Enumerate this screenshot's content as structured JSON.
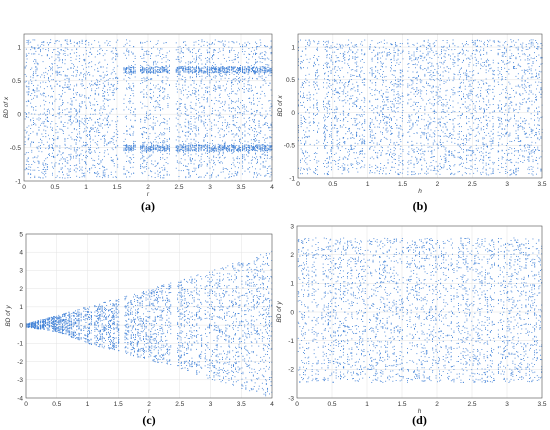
{
  "figure": {
    "point_color": "#3d7fd6"
  },
  "chart_data": [
    {
      "type": "scatter",
      "caption": "(a)",
      "xlabel": "r",
      "ylabel": "BD of x",
      "xlim": [
        0,
        4
      ],
      "ylim": [
        -1,
        1.2
      ],
      "xticks": [
        "0",
        "0.5",
        "1",
        "1.5",
        "2",
        "2.5",
        "3",
        "3.5",
        "4"
      ],
      "xtick_values": [
        0,
        0.5,
        1,
        1.5,
        2,
        2.5,
        3,
        3.5,
        4
      ],
      "yticks": [
        "-1",
        "-0.5",
        "0",
        "0.5",
        "1"
      ],
      "ytick_values": [
        -1,
        -0.5,
        0,
        0.5,
        1
      ],
      "grid": true,
      "envelope": [
        [
          0,
          -0.95,
          1.12
        ],
        [
          4,
          -0.95,
          1.12
        ]
      ],
      "gaps": [
        [
          1.52,
          1.6
        ],
        [
          1.8,
          1.86
        ],
        [
          2.35,
          2.43
        ]
      ],
      "dense_bands": [
        [
          2.4,
          4,
          0.62,
          0.72
        ],
        [
          2.4,
          4,
          -0.55,
          -0.45
        ],
        [
          1.6,
          2.35,
          0.62,
          0.72
        ],
        [
          1.6,
          2.35,
          -0.55,
          -0.45
        ]
      ],
      "series": [
        {
          "values": []
        }
      ]
    },
    {
      "type": "scatter",
      "caption": "(b)",
      "xlabel": "h",
      "ylabel": "BD of x",
      "xlim": [
        0,
        3.5
      ],
      "ylim": [
        -1,
        1.2
      ],
      "xticks": [
        "0",
        "0.5",
        "1",
        "1.5",
        "2",
        "2.5",
        "3",
        "3.5"
      ],
      "xtick_values": [
        0,
        0.5,
        1,
        1.5,
        2,
        2.5,
        3,
        3.5
      ],
      "yticks": [
        "-1",
        "-0.5",
        "0",
        "0.5",
        "1"
      ],
      "ytick_values": [
        -1,
        -0.5,
        0,
        0.5,
        1
      ],
      "grid": true,
      "envelope": [
        [
          0,
          -0.95,
          1.12
        ],
        [
          3.5,
          -0.95,
          1.12
        ]
      ],
      "gaps": [
        [
          0.17,
          0.2
        ],
        [
          0.3,
          0.34
        ],
        [
          0.97,
          1.0
        ],
        [
          1.52,
          1.55
        ],
        [
          2.25,
          2.28
        ],
        [
          2.82,
          2.85
        ]
      ],
      "dense_bands": [],
      "series": [
        {
          "values": []
        }
      ]
    },
    {
      "type": "scatter",
      "caption": "(c)",
      "xlabel": "r",
      "ylabel": "BD of y",
      "xlim": [
        0,
        4
      ],
      "ylim": [
        -4,
        5
      ],
      "xticks": [
        "0",
        "0.5",
        "1",
        "1.5",
        "2",
        "2.5",
        "3",
        "3.5",
        "4"
      ],
      "xtick_values": [
        0,
        0.5,
        1,
        1.5,
        2,
        2.5,
        3,
        3.5,
        4
      ],
      "yticks": [
        "-4",
        "-3",
        "-2",
        "-1",
        "0",
        "1",
        "2",
        "3",
        "4",
        "5"
      ],
      "ytick_values": [
        -4,
        -3,
        -2,
        -1,
        0,
        1,
        2,
        3,
        4,
        5
      ],
      "grid": true,
      "envelope": [
        [
          0,
          -0.1,
          0.1
        ],
        [
          0.5,
          -0.35,
          0.55
        ],
        [
          1,
          -1.0,
          1.05
        ],
        [
          1.5,
          -1.45,
          1.5
        ],
        [
          2,
          -1.9,
          2.0
        ],
        [
          2.5,
          -2.4,
          2.5
        ],
        [
          3,
          -2.95,
          3.0
        ],
        [
          3.5,
          -3.45,
          3.6
        ],
        [
          4,
          -4.0,
          4.15
        ]
      ],
      "gaps": [
        [
          0.9,
          0.93
        ],
        [
          1.07,
          1.1
        ],
        [
          1.52,
          1.58
        ],
        [
          2.35,
          2.43
        ],
        [
          2.85,
          2.88
        ]
      ],
      "dense_bands": [],
      "series": [
        {
          "values": []
        }
      ]
    },
    {
      "type": "scatter",
      "caption": "(d)",
      "xlabel": "h",
      "ylabel": "BD of y",
      "xlim": [
        0,
        3.5
      ],
      "ylim": [
        -3,
        3
      ],
      "xticks": [
        "0",
        "0.5",
        "1",
        "1.5",
        "2",
        "2.5",
        "3",
        "3.5"
      ],
      "xtick_values": [
        0,
        0.5,
        1,
        1.5,
        2,
        2.5,
        3,
        3.5
      ],
      "yticks": [
        "-3",
        "-2",
        "-1",
        "0",
        "1",
        "2",
        "3"
      ],
      "ytick_values": [
        -3,
        -2,
        -1,
        0,
        1,
        2,
        3
      ],
      "grid": true,
      "envelope": [
        [
          0,
          -2.45,
          2.6
        ],
        [
          3.5,
          -2.45,
          2.6
        ]
      ],
      "gaps": [
        [
          0.17,
          0.2
        ],
        [
          0.3,
          0.34
        ],
        [
          0.97,
          1.0
        ],
        [
          1.52,
          1.55
        ],
        [
          2.25,
          2.28
        ],
        [
          2.82,
          2.85
        ]
      ],
      "dense_bands": [],
      "series": [
        {
          "values": []
        }
      ]
    }
  ]
}
